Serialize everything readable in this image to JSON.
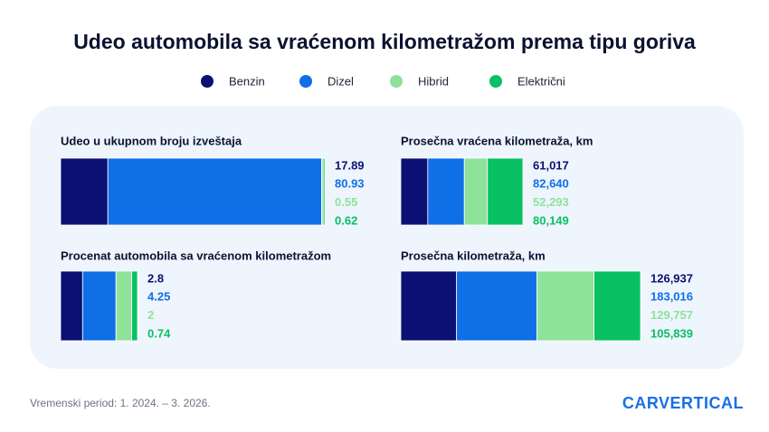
{
  "title": "Udeo automobila sa vraćenom kilometražom prema tipu goriva",
  "legend": [
    {
      "name": "Benzin",
      "color": "#0a1172"
    },
    {
      "name": "Dizel",
      "color": "#0f6fe6"
    },
    {
      "name": "Hibrid",
      "color": "#8ee29a"
    },
    {
      "name": "Električni",
      "color": "#09c063"
    }
  ],
  "chart_data": [
    {
      "type": "bar",
      "orientation": "horizontal",
      "stacked": true,
      "title": "Udeo u ukupnom broju izveštaja",
      "values": [
        17.89,
        80.93,
        0.55,
        0.62
      ]
    },
    {
      "type": "bar",
      "orientation": "horizontal",
      "stacked": true,
      "title": "Procenat automobila sa vraćenom kilometražom",
      "values": [
        2.8,
        4.25,
        2,
        0.74
      ]
    },
    {
      "type": "bar",
      "orientation": "horizontal",
      "stacked": true,
      "title": "Prosečna vraćena kilometraža, km",
      "values": [
        61017,
        82640,
        52293,
        80149
      ],
      "value_labels": [
        "61,017",
        "82,640",
        "52,293",
        "80,149"
      ]
    },
    {
      "type": "bar",
      "orientation": "horizontal",
      "stacked": true,
      "title": "Prosečna kilometraža, km",
      "values": [
        126937,
        183016,
        129757,
        105839
      ],
      "value_labels": [
        "126,937",
        "183,016",
        "129,757",
        "105,839"
      ]
    }
  ],
  "footer": "Vremenski period: 1. 2024. – 3. 2026.",
  "logo": "CARVERTICAL"
}
